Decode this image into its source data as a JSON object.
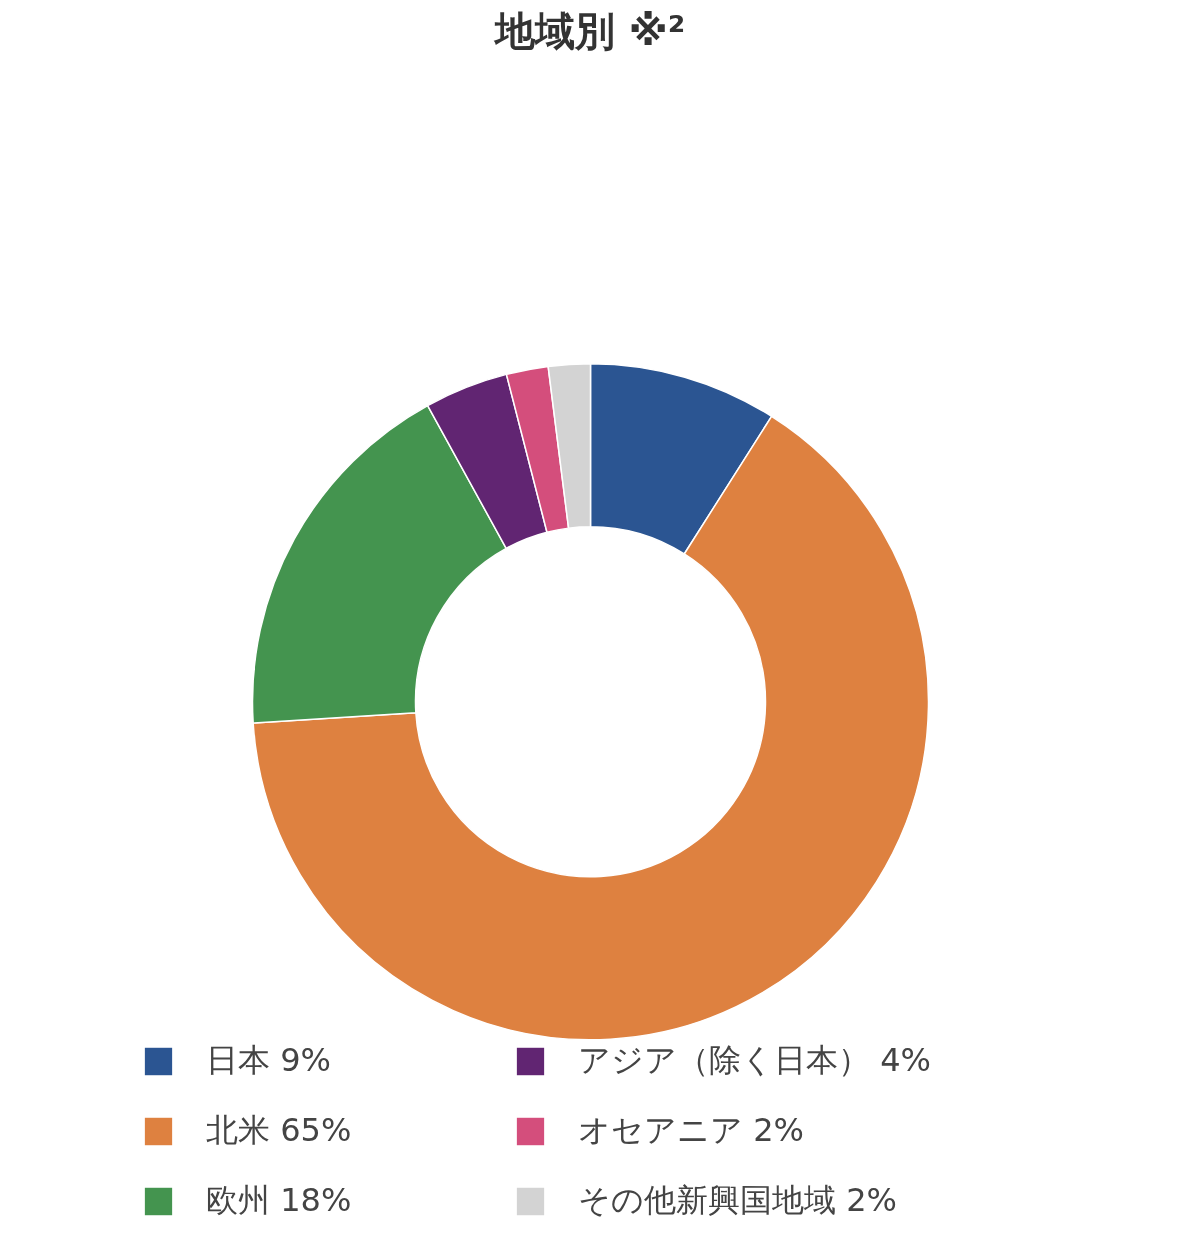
{
  "chart_data": {
    "type": "donut",
    "title": "地域別 ※²",
    "categories": [
      "日本",
      "北米",
      "欧州",
      "アジア（除く日本）",
      "オセアニア",
      "その他新興国地域"
    ],
    "values": [
      9,
      65,
      18,
      4,
      2,
      2
    ],
    "value_labels": [
      "9%",
      "65%",
      "18%",
      "4%",
      "2%",
      "2%"
    ],
    "colors": [
      "#2b5592",
      "#de8140",
      "#44944f",
      "#612572",
      "#d44e7c",
      "#d3d3d3"
    ],
    "legend": "bottom"
  }
}
